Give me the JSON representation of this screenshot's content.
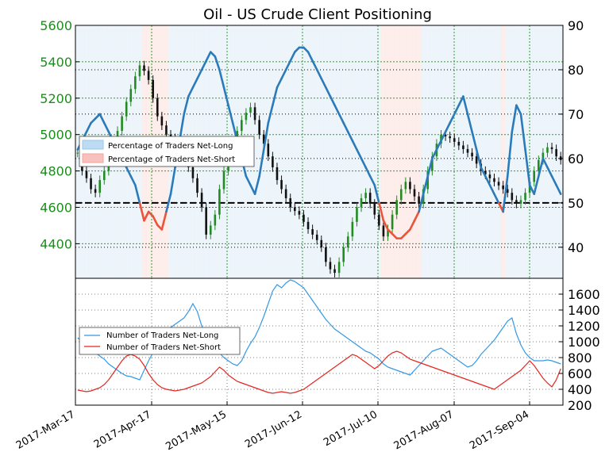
{
  "chart_data": [
    {
      "type": "candlestick_line_overlay",
      "title": "Oil - US Crude Client Positioning",
      "x_labels": [
        "2017-Mar-17",
        "2017-Apr-17",
        "2017-May-15",
        "2017-Jun-12",
        "2017-Jul-10",
        "2017-Aug-07",
        "2017-Sep-04"
      ],
      "left_axis": {
        "ticks": [
          "4400",
          "4600",
          "4800",
          "5000",
          "5200",
          "5400",
          "5600"
        ],
        "range": [
          4210,
          5600
        ]
      },
      "right_axis": {
        "ticks": [
          "40",
          "50",
          "60",
          "70",
          "80",
          "90"
        ],
        "range": [
          33,
          90
        ]
      },
      "reference_line": 50,
      "legend": {
        "position": "middle-left",
        "entries": [
          "Percentage of Traders Net-Long",
          "Percentage of Traders Net-Short"
        ]
      },
      "price_series": {
        "name": "US Crude",
        "values": [
          4900,
          4800,
          4760,
          4700,
          4680,
          4750,
          4800,
          4880,
          4950,
          5020,
          5100,
          5180,
          5250,
          5320,
          5380,
          5350,
          5300,
          5200,
          5100,
          5050,
          5000,
          4980,
          4960,
          4920,
          4880,
          4820,
          4760,
          4680,
          4600,
          4450,
          4500,
          4560,
          4700,
          4800,
          4880,
          4950,
          5020,
          5080,
          5120,
          5150,
          5080,
          5000,
          4950,
          4880,
          4820,
          4750,
          4700,
          4650,
          4600,
          4580,
          4560,
          4520,
          4480,
          4450,
          4420,
          4380,
          4300,
          4260,
          4240,
          4300,
          4380,
          4440,
          4520,
          4600,
          4650,
          4680,
          4620,
          4560,
          4500,
          4440,
          4480,
          4560,
          4640,
          4700,
          4740,
          4700,
          4660,
          4620,
          4700,
          4800,
          4880,
          4950,
          5000,
          4990,
          4980,
          4960,
          4940,
          4920,
          4900,
          4880,
          4840,
          4800,
          4780,
          4760,
          4740,
          4720,
          4700,
          4680,
          4640,
          4620,
          4640,
          4680,
          4740,
          4800,
          4860,
          4900,
          4930,
          4920,
          4880,
          4860
        ]
      },
      "net_long_pct_series": {
        "name": "Percentage of Traders Net-Long",
        "values": [
          62,
          64,
          66,
          68,
          69,
          70,
          68,
          66,
          64,
          62,
          60,
          58,
          56,
          54,
          50,
          46,
          48,
          47,
          45,
          44,
          48,
          52,
          58,
          64,
          70,
          74,
          76,
          78,
          80,
          82,
          84,
          83,
          80,
          76,
          72,
          68,
          64,
          60,
          56,
          54,
          52,
          56,
          62,
          68,
          72,
          76,
          78,
          80,
          82,
          84,
          85,
          85,
          84,
          82,
          80,
          78,
          76,
          74,
          72,
          70,
          68,
          66,
          64,
          62,
          60,
          58,
          56,
          54,
          50,
          46,
          44,
          43,
          42,
          42,
          43,
          44,
          46,
          48,
          52,
          56,
          60,
          62,
          64,
          66,
          68,
          70,
          72,
          74,
          70,
          66,
          62,
          58,
          56,
          54,
          52,
          50,
          48,
          56,
          66,
          72,
          70,
          62,
          54,
          52,
          56,
          60,
          58,
          56,
          54,
          52
        ]
      }
    },
    {
      "type": "line",
      "y_axis": {
        "ticks": [
          "200",
          "400",
          "600",
          "800",
          "1000",
          "1200",
          "1400",
          "1600"
        ],
        "range": [
          200,
          1800
        ]
      },
      "legend": {
        "position": "middle-left",
        "entries": [
          "Number of Traders Net-Long",
          "Number of Traders Net-Short"
        ]
      },
      "series": [
        {
          "name": "Number of Traders Net-Long",
          "color": "#3399e6",
          "values": [
            1050,
            1000,
            950,
            900,
            860,
            820,
            780,
            720,
            680,
            640,
            600,
            570,
            560,
            540,
            520,
            640,
            760,
            860,
            960,
            1040,
            1120,
            1180,
            1220,
            1260,
            1300,
            1380,
            1480,
            1380,
            1200,
            1060,
            980,
            920,
            860,
            800,
            760,
            720,
            700,
            760,
            880,
            980,
            1060,
            1180,
            1320,
            1480,
            1640,
            1720,
            1680,
            1740,
            1780,
            1760,
            1720,
            1680,
            1600,
            1520,
            1440,
            1360,
            1280,
            1220,
            1160,
            1120,
            1080,
            1040,
            1000,
            960,
            920,
            880,
            860,
            820,
            780,
            720,
            680,
            660,
            640,
            620,
            600,
            580,
            640,
            700,
            760,
            820,
            880,
            900,
            920,
            880,
            840,
            800,
            760,
            720,
            680,
            700,
            760,
            840,
            900,
            960,
            1020,
            1100,
            1180,
            1260,
            1300,
            1100,
            960,
            860,
            800,
            760,
            760,
            760,
            770,
            760,
            740,
            720
          ]
        },
        {
          "name": "Number of Traders Net-Short",
          "color": "#e6261f",
          "values": [
            390,
            380,
            370,
            380,
            400,
            420,
            460,
            520,
            600,
            680,
            760,
            820,
            840,
            820,
            780,
            700,
            600,
            520,
            460,
            420,
            400,
            390,
            380,
            390,
            400,
            420,
            440,
            460,
            480,
            520,
            560,
            620,
            680,
            640,
            580,
            540,
            500,
            480,
            460,
            440,
            420,
            400,
            380,
            360,
            350,
            360,
            370,
            360,
            350,
            360,
            380,
            400,
            440,
            480,
            520,
            560,
            600,
            640,
            680,
            720,
            760,
            800,
            840,
            820,
            780,
            740,
            700,
            660,
            700,
            760,
            820,
            860,
            880,
            860,
            820,
            780,
            760,
            740,
            720,
            700,
            680,
            660,
            640,
            620,
            600,
            580,
            560,
            540,
            520,
            500,
            480,
            460,
            440,
            420,
            400,
            440,
            480,
            520,
            560,
            600,
            640,
            700,
            760,
            700,
            620,
            540,
            480,
            430,
            520,
            660
          ]
        }
      ]
    }
  ]
}
